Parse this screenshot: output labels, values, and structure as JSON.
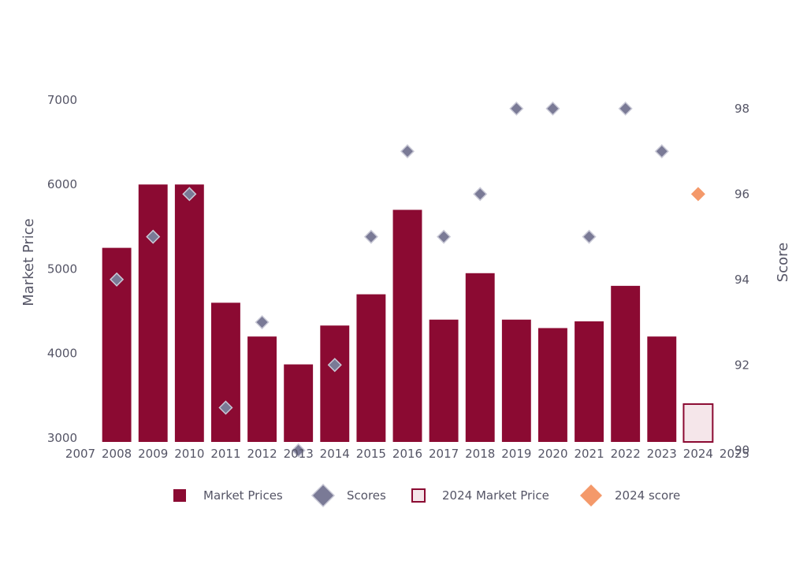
{
  "chart_data": {
    "type": "bar",
    "title": "",
    "xlabel": "",
    "ylabel": "Market Price",
    "y2label": "Score",
    "xlim": [
      2007,
      2025
    ],
    "ylim": [
      2700,
      7000
    ],
    "y2lim": [
      89.7,
      98.2
    ],
    "x_ticks": [
      "2007",
      "2008",
      "2009",
      "2010",
      "2011",
      "2012",
      "2013",
      "2014",
      "2015",
      "2016",
      "2017",
      "2018",
      "2019",
      "2020",
      "2021",
      "2022",
      "2023",
      "2024",
      "2025"
    ],
    "y_ticks": [
      "3000",
      "4000",
      "5000",
      "6000",
      "7000"
    ],
    "y2_ticks": [
      "90",
      "92",
      "94",
      "96",
      "98"
    ],
    "series": [
      {
        "name": "Market Prices",
        "kind": "bar",
        "axis": "left",
        "color": "#8B0A32",
        "x": [
          2008,
          2009,
          2010,
          2011,
          2012,
          2013,
          2014,
          2015,
          2016,
          2017,
          2018,
          2019,
          2020,
          2021,
          2022,
          2023
        ],
        "values": [
          5250,
          6000,
          6000,
          4600,
          4200,
          3870,
          4330,
          4700,
          5700,
          4400,
          4950,
          4400,
          4300,
          4380,
          4800,
          4200
        ]
      },
      {
        "name": "Scores",
        "kind": "marker",
        "axis": "right",
        "color": "#7A7A96",
        "x": [
          2008,
          2009,
          2010,
          2011,
          2012,
          2013,
          2014,
          2015,
          2016,
          2017,
          2018,
          2019,
          2020,
          2021,
          2022,
          2023
        ],
        "values": [
          94,
          95,
          96,
          91,
          93,
          90,
          92,
          95,
          97,
          95,
          96,
          98,
          98,
          95,
          98,
          97
        ]
      },
      {
        "name": "2024 Market Price",
        "kind": "bar",
        "axis": "left",
        "color": "#F5E6EA",
        "stroke": "#8B0A32",
        "x": [
          2024
        ],
        "values": [
          3400
        ]
      },
      {
        "name": "2024 score",
        "kind": "marker",
        "axis": "right",
        "color": "#F4996A",
        "x": [
          2024
        ],
        "values": [
          96
        ]
      }
    ],
    "legend": {
      "position": "bottom",
      "items": [
        "Market Prices",
        "Scores",
        "2024 Market Price",
        "2024 score"
      ]
    }
  }
}
